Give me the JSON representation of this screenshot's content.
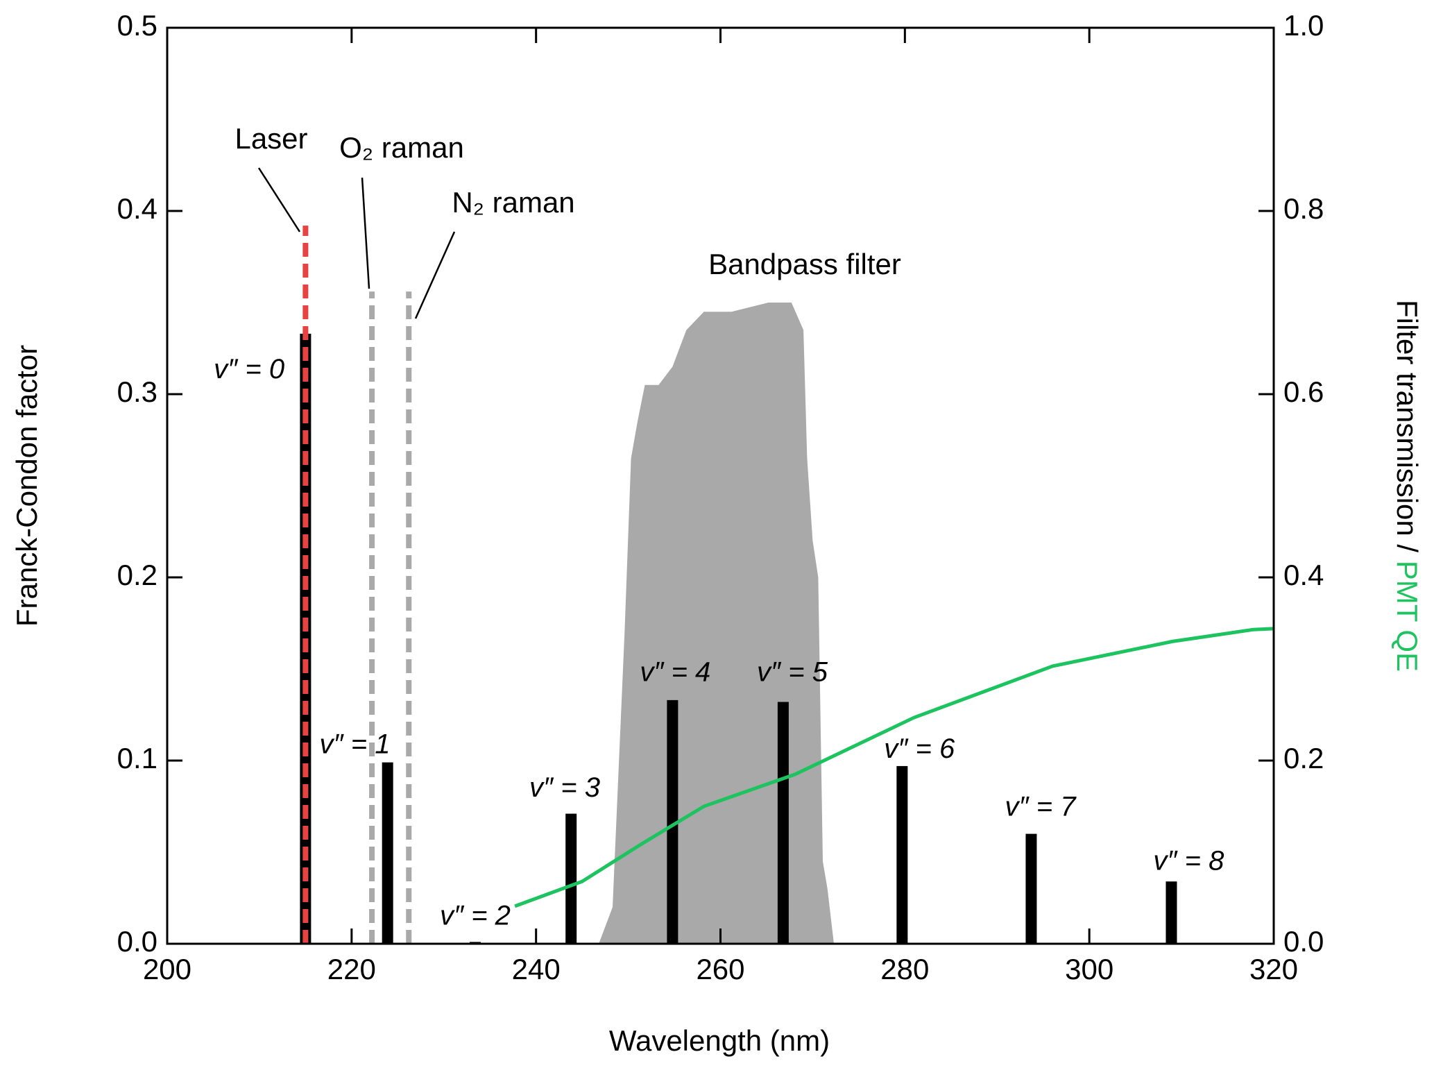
{
  "chart_data": {
    "type": "bar",
    "xlabel": "Wavelength (nm)",
    "ylabel": "Franck-Condon factor",
    "y2label": "Filter transmission / ",
    "y2label_highlight": "PMT QE",
    "xlim": [
      200,
      320
    ],
    "xticks": [
      200,
      220,
      240,
      260,
      280,
      300,
      320
    ],
    "ylim": [
      0,
      0.5
    ],
    "yticks": [
      {
        "value": 0,
        "label": "0.0"
      },
      0.1,
      0.2,
      0.3,
      0.4,
      0.5
    ],
    "y2lim": [
      0,
      1
    ],
    "y2ticks": [
      {
        "value": 0,
        "label": "0.0"
      },
      0.2,
      0.4,
      0.6,
      0.8,
      {
        "value": 1,
        "label": "1.0"
      }
    ],
    "bars": {
      "labels": [
        "v″ = 0",
        "v″ = 1",
        "v″ = 2",
        "v″ = 3",
        "v″ = 4",
        "v″ = 5",
        "v″ = 6",
        "v″ = 7",
        "v″ = 8"
      ],
      "x": [
        215.0,
        223.9,
        233.4,
        243.8,
        254.8,
        266.8,
        279.7,
        293.7,
        308.9
      ],
      "values": [
        0.333,
        0.099,
        0.001,
        0.071,
        0.133,
        0.132,
        0.097,
        0.06,
        0.034
      ],
      "color": "#000000"
    },
    "filter": {
      "label": "Bandpass filter",
      "axis": "y2",
      "color": "#a9a9a9",
      "x": [
        246.8,
        248.3,
        249.6,
        250.3,
        251.0,
        251.8,
        253.3,
        254.8,
        256.3,
        258.2,
        261.2,
        265.2,
        267.7,
        269.0,
        269.4,
        270.0,
        270.6,
        271.1,
        271.6,
        272.3
      ],
      "values": [
        0,
        0.04,
        0.34,
        0.53,
        0.57,
        0.61,
        0.61,
        0.63,
        0.67,
        0.69,
        0.69,
        0.7,
        0.7,
        0.67,
        0.53,
        0.44,
        0.4,
        0.09,
        0.06,
        0
      ]
    },
    "qe": {
      "axis": "y2",
      "color": "#1dc35f",
      "x": [
        237.7,
        245.0,
        251.3,
        258.2,
        268.1,
        281.0,
        296.0,
        309.0,
        317.8,
        320.0
      ],
      "values": [
        0.041,
        0.068,
        0.108,
        0.15,
        0.185,
        0.247,
        0.303,
        0.33,
        0.343,
        0.344
      ]
    },
    "lines": [
      {
        "label": "Laser",
        "x": 215.0,
        "top": 0.392,
        "color": "#e84343"
      },
      {
        "label": "O₂ raman",
        "x": 222.2,
        "top": 0.356,
        "color": "#a9a9a9"
      },
      {
        "label": "N₂ raman",
        "x": 226.2,
        "top": 0.356,
        "color": "#a9a9a9"
      }
    ]
  }
}
